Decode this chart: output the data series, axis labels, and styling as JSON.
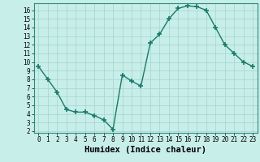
{
  "xlabel": "Humidex (Indice chaleur)",
  "x": [
    0,
    1,
    2,
    3,
    4,
    5,
    6,
    7,
    8,
    9,
    10,
    11,
    12,
    13,
    14,
    15,
    16,
    17,
    18,
    19,
    20,
    21,
    22,
    23
  ],
  "y": [
    9.5,
    8.0,
    6.5,
    4.5,
    4.2,
    4.2,
    3.8,
    3.3,
    2.2,
    8.5,
    7.8,
    7.2,
    12.2,
    13.2,
    15.0,
    16.2,
    16.5,
    16.4,
    16.0,
    14.0,
    12.0,
    11.0,
    10.0,
    9.5
  ],
  "line_color": "#1a7a6a",
  "marker": "+",
  "bg_color": "#c8eeea",
  "grid_color": "#a8d8d4",
  "xlim": [
    -0.5,
    23.5
  ],
  "ylim": [
    1.8,
    16.8
  ],
  "yticks": [
    2,
    3,
    4,
    5,
    6,
    7,
    8,
    9,
    10,
    11,
    12,
    13,
    14,
    15,
    16
  ],
  "xticks": [
    0,
    1,
    2,
    3,
    4,
    5,
    6,
    7,
    8,
    9,
    10,
    11,
    12,
    13,
    14,
    15,
    16,
    17,
    18,
    19,
    20,
    21,
    22,
    23
  ],
  "tick_fontsize": 5.5,
  "label_fontsize": 7.5
}
